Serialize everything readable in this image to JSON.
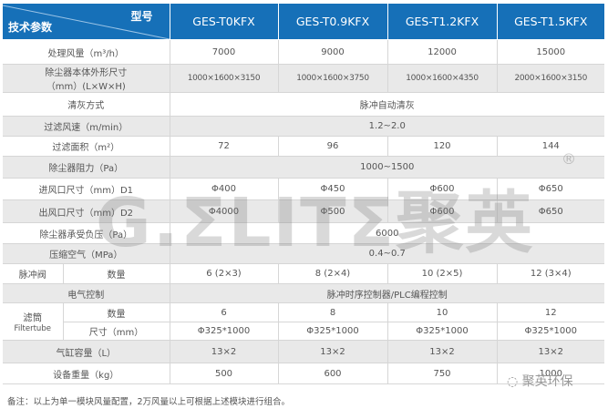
{
  "header": {
    "corner_top": "型号",
    "corner_bottom": "技术参数",
    "models": [
      "GES-T0KFX",
      "GES-T0.9KFX",
      "GES-T1.2KFX",
      "GES-T1.5KFX"
    ]
  },
  "rows": {
    "airflow": {
      "label": "处理风量（m³/h）",
      "values": [
        "7000",
        "9000",
        "12000",
        "15000"
      ]
    },
    "dims": {
      "label1": "除尘器本体外形尺寸",
      "label2": "（mm）(L×W×H)",
      "values": [
        "1000×1600×3150",
        "1000×1600×3750",
        "1000×1600×4350",
        "2000×1600×3150"
      ]
    },
    "cleaning": {
      "label": "清灰方式",
      "value": "脉冲自动清灰"
    },
    "filter_speed": {
      "label": "过滤风速（m/min）",
      "value": "1.2~2.0"
    },
    "filter_area": {
      "label": "过滤面积（m²）",
      "values": [
        "72",
        "96",
        "120",
        "144"
      ]
    },
    "resistance": {
      "label": "除尘器阻力（Pa）",
      "value": "1000~1500"
    },
    "inlet": {
      "label": "进风口尺寸（mm）D1",
      "values": [
        "Φ400",
        "Φ450",
        "Φ600",
        "Φ650"
      ]
    },
    "outlet": {
      "label": "出风口尺寸（mm）D2",
      "values": [
        "Φ4000",
        "Φ500",
        "Φ600",
        "Φ650"
      ]
    },
    "pressure": {
      "label": "除尘器承受负压（Pa）",
      "value": "6000"
    },
    "air": {
      "label": "压缩空气（MPa）",
      "value": "0.4~0.7"
    },
    "valve": {
      "label": "脉冲阀",
      "sub": "数量",
      "values": [
        "6 (2×3)",
        "8 (2×4)",
        "10 (2×5)",
        "12 (3×4)"
      ]
    },
    "electric": {
      "label": "电气控制",
      "value": "脉冲时序控制器/PLC编程控制"
    },
    "filter": {
      "label1": "滤筒",
      "label2": "Filtertube",
      "qty_label": "数量",
      "qty": [
        "6",
        "8",
        "10",
        "12"
      ],
      "size_label": "尺寸（mm）",
      "size": [
        "Φ325*1000",
        "Φ325*1000",
        "Φ325*1000",
        "Φ325*1000"
      ]
    },
    "cylinder": {
      "label": "气缸容量（L）",
      "values": [
        "13×2",
        "13×2",
        "13×2",
        "13×2"
      ]
    },
    "weight": {
      "label": "设备重量（kg）",
      "values": [
        "500",
        "600",
        "750",
        "1000"
      ]
    }
  },
  "watermark": "G.ΣLITΣ聚英",
  "registered": "®",
  "note": "备注：以上为单一模块风量配置，2万风量以上可根据上述模块进行组合。",
  "wechat_brand": "聚英环保",
  "colors": {
    "header": "#1670b8",
    "stripe": "#e9e9e9"
  }
}
